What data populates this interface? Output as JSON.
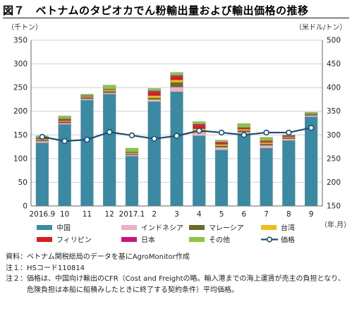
{
  "title": "図７　ベトナムのタピオカでん粉輸出量および輸出価格の推移",
  "left_unit": "（千トン）",
  "right_unit": "（米ドル/トン）",
  "x_unit": "（年.月）",
  "chart_data": {
    "type": "bar",
    "stacked": true,
    "categories": [
      "2016.9",
      "10",
      "11",
      "12",
      "2017.1",
      "2",
      "3",
      "4",
      "5",
      "6",
      "7",
      "8",
      "9"
    ],
    "y_left": {
      "min": 0,
      "max": 350,
      "ticks": [
        0,
        50,
        100,
        150,
        200,
        250,
        300,
        350
      ]
    },
    "y_right": {
      "min": 150,
      "max": 500,
      "ticks": [
        150,
        200,
        250,
        300,
        350,
        400,
        450,
        500
      ]
    },
    "series": [
      {
        "name": "中国",
        "color": "#3a8aa3",
        "values": [
          133,
          172,
          223,
          236,
          105,
          220,
          241,
          148,
          118,
          152,
          122,
          138,
          188
        ]
      },
      {
        "name": "インドネシア",
        "color": "#e8b4bf",
        "values": [
          4,
          3,
          3,
          3,
          3,
          5,
          10,
          8,
          6,
          4,
          6,
          4,
          3
        ]
      },
      {
        "name": "マレーシア",
        "color": "#6b6a2c",
        "values": [
          2,
          3,
          3,
          3,
          2,
          3,
          10,
          3,
          3,
          3,
          3,
          2,
          2
        ]
      },
      {
        "name": "台湾",
        "color": "#f0bd1a",
        "values": [
          2,
          2,
          2,
          3,
          2,
          5,
          5,
          4,
          3,
          3,
          3,
          2,
          1
        ]
      },
      {
        "name": "フィリピン",
        "color": "#d42020",
        "values": [
          2,
          3,
          1,
          1,
          1,
          8,
          8,
          8,
          4,
          3,
          3,
          2,
          1
        ]
      },
      {
        "name": "日本",
        "color": "#c8187a",
        "values": [
          1,
          1,
          1,
          1,
          1,
          2,
          2,
          2,
          1,
          1,
          1,
          1,
          0
        ]
      },
      {
        "name": "その他",
        "color": "#8cc63f",
        "values": [
          4,
          6,
          3,
          8,
          8,
          5,
          6,
          5,
          4,
          8,
          7,
          1,
          3
        ]
      }
    ],
    "line": {
      "name": "価格",
      "axis": "right",
      "color": "#1f4e6e",
      "values": [
        296,
        287,
        290,
        306,
        299,
        292,
        298,
        309,
        305,
        300,
        305,
        305,
        315
      ]
    }
  },
  "notes": [
    {
      "prefix": "資料：",
      "text": "ベトナム関税総局のデータを基にAgroMonitor作成"
    },
    {
      "prefix": "注１：",
      "text": "HSコード110814"
    },
    {
      "prefix": "注２：",
      "text": "価格は、中国向け輸出のCFR（Cost and Freightの略。輸入港までの海上運賃が売主の負担となり、危険負担は本船に船積みしたときに終了する契約条件）平均価格。"
    }
  ]
}
